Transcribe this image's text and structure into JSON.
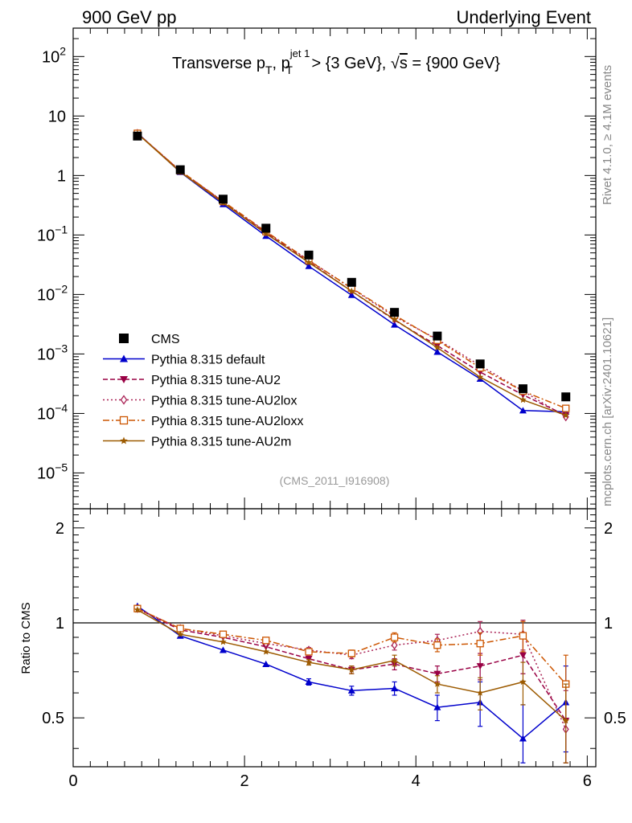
{
  "header": {
    "left_label": "900 GeV pp",
    "right_label": "Underlying Event"
  },
  "side_labels": {
    "rivet": "Rivet 4.1.0, ≥ 4.1M events",
    "mcplots": "mcplots.cern.ch [arXiv:2401.10621]"
  },
  "chart_data": {
    "type": "line",
    "title_parts": {
      "a": "Transverse p",
      "a_sub": "T",
      "b": ", p",
      "b_sup": "jet 1",
      "b_sub": "T",
      "c": " > {3 GeV}, ",
      "sqrt": "√",
      "s": "s",
      "d": " = {900 GeV}"
    },
    "analysis_ref": "(CMS_2011_I916908)",
    "x": [
      0.75,
      1.25,
      1.75,
      2.25,
      2.75,
      3.25,
      3.75,
      4.25,
      4.75,
      5.25,
      5.75
    ],
    "xlim": [
      0,
      6.1
    ],
    "xticks": [
      0,
      2,
      4,
      6
    ],
    "xtick_labels": [
      "0",
      "2",
      "4",
      "6"
    ],
    "main_ylim": [
      2.5e-06,
      300
    ],
    "main_ylabels": [
      {
        "value": 100,
        "base": "10",
        "exp": "2"
      },
      {
        "value": 10,
        "base": "10",
        "exp": ""
      },
      {
        "value": 1,
        "base": "1",
        "exp": ""
      },
      {
        "value": 0.1,
        "base": "10",
        "exp": "−1"
      },
      {
        "value": 0.01,
        "base": "10",
        "exp": "−2"
      },
      {
        "value": 0.001,
        "base": "10",
        "exp": "−3"
      },
      {
        "value": 0.0001,
        "base": "10",
        "exp": "−4"
      },
      {
        "value": 1e-05,
        "base": "10",
        "exp": "−5"
      }
    ],
    "ratio_ylabel": "Ratio to CMS",
    "ratio_ylim": [
      0.35,
      2.3
    ],
    "ratio_yticks": [
      0.5,
      1,
      2
    ],
    "ratio_ytick_labels": [
      "0.5",
      "1",
      "2"
    ],
    "data_series": {
      "name": "CMS",
      "values": [
        4.6,
        1.25,
        0.4,
        0.13,
        0.046,
        0.016,
        0.005,
        0.002,
        0.00068,
        0.00026,
        0.00019
      ]
    },
    "series": [
      {
        "name": "Pythia 8.315 default",
        "color": "#0000cc",
        "dash": "",
        "marker": "triangle-up",
        "ratio": [
          1.13,
          0.91,
          0.82,
          0.74,
          0.65,
          0.61,
          0.62,
          0.54,
          0.56,
          0.43,
          0.56
        ],
        "ratio_err": [
          0.01,
          0.01,
          0.01,
          0.01,
          0.015,
          0.02,
          0.03,
          0.05,
          0.09,
          0.12,
          0.17
        ]
      },
      {
        "name": "Pythia 8.315 tune-AU2",
        "color": "#990044",
        "dash": "6,3",
        "marker": "triangle-down",
        "ratio": [
          1.11,
          0.95,
          0.9,
          0.84,
          0.77,
          0.71,
          0.74,
          0.69,
          0.73,
          0.79,
          0.49
        ],
        "ratio_err": [
          0.01,
          0.01,
          0.01,
          0.01,
          0.015,
          0.02,
          0.03,
          0.04,
          0.07,
          0.1,
          0.15
        ]
      },
      {
        "name": "Pythia 8.315 tune-AU2lox",
        "color": "#aa2255",
        "dash": "2,3",
        "marker": "diamond-open",
        "ratio": [
          1.11,
          0.96,
          0.91,
          0.86,
          0.82,
          0.79,
          0.85,
          0.88,
          0.94,
          0.92,
          0.46
        ],
        "ratio_err": [
          0.01,
          0.01,
          0.01,
          0.01,
          0.015,
          0.02,
          0.03,
          0.04,
          0.07,
          0.1,
          0.15
        ]
      },
      {
        "name": "Pythia 8.315 tune-AU2loxx",
        "color": "#cc5500",
        "dash": "8,3,2,3",
        "marker": "square-open",
        "ratio": [
          1.11,
          0.96,
          0.92,
          0.88,
          0.81,
          0.8,
          0.9,
          0.85,
          0.86,
          0.91,
          0.64
        ],
        "ratio_err": [
          0.01,
          0.01,
          0.01,
          0.01,
          0.015,
          0.02,
          0.03,
          0.04,
          0.07,
          0.1,
          0.15
        ]
      },
      {
        "name": "Pythia 8.315 tune-AU2m",
        "color": "#9c5a00",
        "dash": "",
        "marker": "star",
        "ratio": [
          1.1,
          0.92,
          0.87,
          0.81,
          0.75,
          0.71,
          0.76,
          0.64,
          0.6,
          0.65,
          0.49
        ],
        "ratio_err": [
          0.01,
          0.01,
          0.01,
          0.01,
          0.015,
          0.02,
          0.03,
          0.04,
          0.07,
          0.1,
          0.15
        ]
      }
    ]
  }
}
